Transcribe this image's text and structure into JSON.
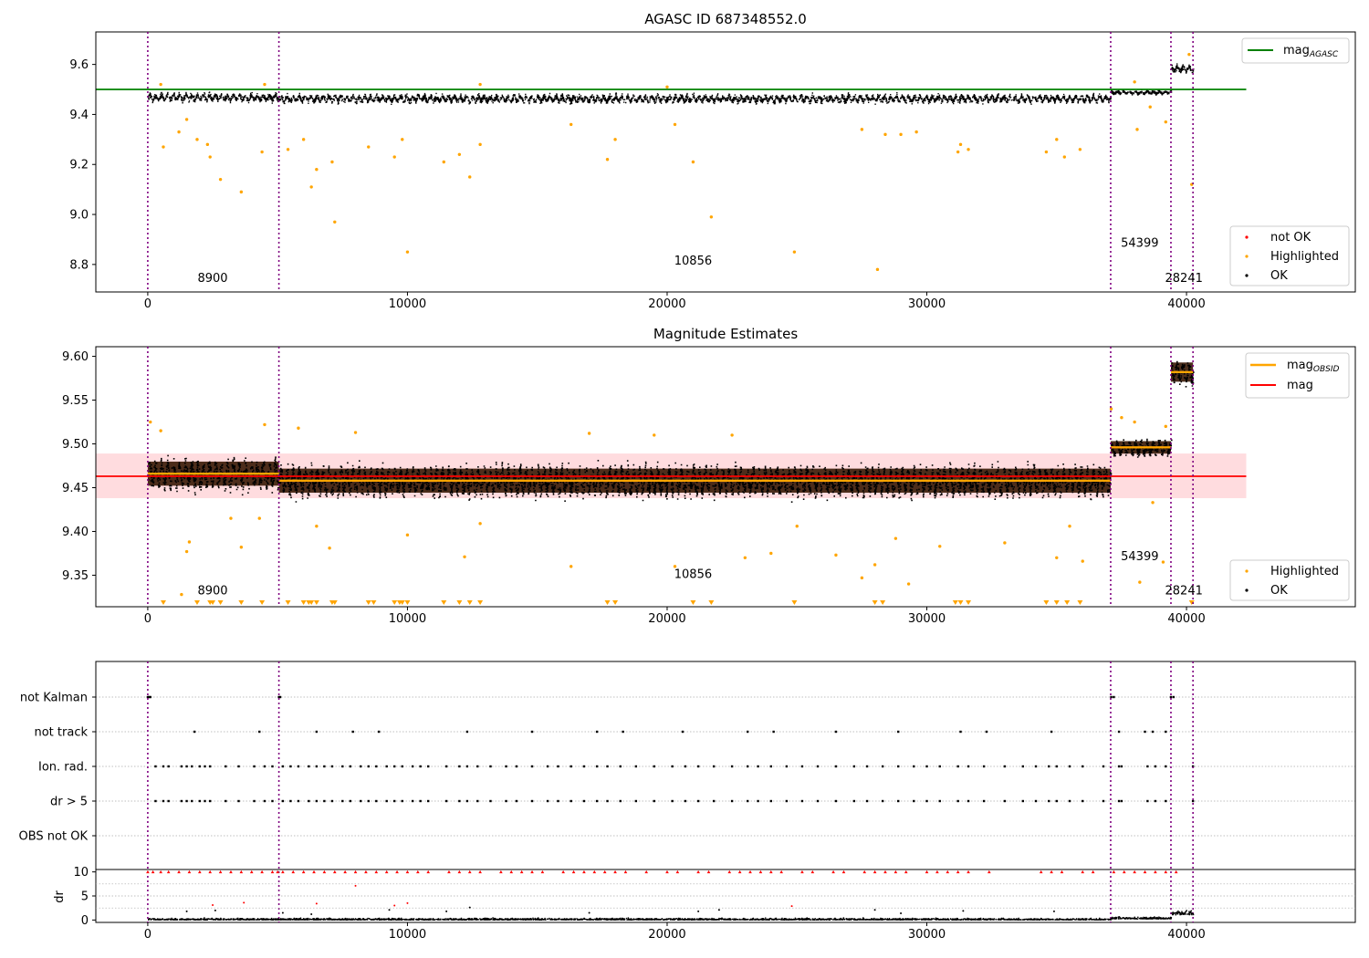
{
  "chart_data": [
    {
      "type": "scatter",
      "panel": "top",
      "title": "AGASC ID 687348552.0",
      "xlim": [
        -2000,
        46500
      ],
      "ylim": [
        8.69,
        9.73
      ],
      "xticks": [
        0,
        10000,
        20000,
        30000,
        40000
      ],
      "yticks": [
        8.8,
        9.0,
        9.2,
        9.4,
        9.6
      ],
      "ytick_labels": [
        "8.8",
        "9.0",
        "9.2",
        "9.4",
        "9.6"
      ],
      "obsid_boundaries": [
        0,
        5050,
        37080,
        39400,
        40250
      ],
      "obsid_labels": [
        {
          "text": "8900",
          "x": 2500,
          "y": 8.73
        },
        {
          "text": "10856",
          "x": 21000,
          "y": 8.8
        },
        {
          "text": "54399",
          "x": 38200,
          "y": 8.87
        },
        {
          "text": "28241",
          "x": 39900,
          "y": 8.73
        }
      ],
      "mag_agasc": 9.5,
      "mag_agasc_xrange": [
        -2000,
        42300
      ],
      "segments": [
        {
          "x0": 0,
          "x1": 5050,
          "center": 9.47,
          "spread": 0.025
        },
        {
          "x0": 5050,
          "x1": 37080,
          "center": 9.465,
          "spread": 0.025
        },
        {
          "x0": 37080,
          "x1": 39400,
          "center": 9.49,
          "spread": 0.012
        },
        {
          "x0": 39400,
          "x1": 40250,
          "center": 9.585,
          "spread": 0.025
        }
      ],
      "highlighted": [
        [
          600,
          9.27
        ],
        [
          1200,
          9.33
        ],
        [
          1500,
          9.38
        ],
        [
          1900,
          9.3
        ],
        [
          2300,
          9.28
        ],
        [
          2400,
          9.23
        ],
        [
          2800,
          9.14
        ],
        [
          3600,
          9.09
        ],
        [
          4400,
          9.25
        ],
        [
          5400,
          9.26
        ],
        [
          6000,
          9.3
        ],
        [
          6300,
          9.11
        ],
        [
          6500,
          9.18
        ],
        [
          7100,
          9.21
        ],
        [
          7200,
          8.97
        ],
        [
          8500,
          9.27
        ],
        [
          9500,
          9.23
        ],
        [
          9800,
          9.3
        ],
        [
          10000,
          8.85
        ],
        [
          11400,
          9.21
        ],
        [
          12000,
          9.24
        ],
        [
          12400,
          9.15
        ],
        [
          12800,
          9.28
        ],
        [
          16300,
          9.36
        ],
        [
          17700,
          9.22
        ],
        [
          18000,
          9.3
        ],
        [
          20300,
          9.36
        ],
        [
          21000,
          9.21
        ],
        [
          21700,
          8.99
        ],
        [
          24900,
          8.85
        ],
        [
          27500,
          9.34
        ],
        [
          28100,
          8.78
        ],
        [
          28400,
          9.32
        ],
        [
          29000,
          9.32
        ],
        [
          29600,
          9.33
        ],
        [
          31200,
          9.25
        ],
        [
          31300,
          9.28
        ],
        [
          31600,
          9.26
        ],
        [
          34600,
          9.25
        ],
        [
          35000,
          9.3
        ],
        [
          35300,
          9.23
        ],
        [
          35900,
          9.26
        ],
        [
          38100,
          9.34
        ],
        [
          38600,
          9.43
        ],
        [
          39200,
          9.37
        ],
        [
          40200,
          9.12
        ],
        [
          500,
          9.52
        ],
        [
          4500,
          9.52
        ],
        [
          12800,
          9.52
        ],
        [
          20000,
          9.51
        ],
        [
          38000,
          9.53
        ],
        [
          40100,
          9.64
        ]
      ],
      "legend_top": [
        "mag_AGASC"
      ],
      "legend_bottom": [
        "not OK",
        "Highlighted",
        "OK"
      ]
    },
    {
      "type": "scatter",
      "panel": "middle",
      "title": "Magnitude Estimates",
      "xlim": [
        -2000,
        46500
      ],
      "ylim": [
        9.314,
        9.611
      ],
      "xticks": [
        0,
        10000,
        20000,
        30000,
        40000
      ],
      "yticks": [
        9.35,
        9.4,
        9.45,
        9.5,
        9.55,
        9.6
      ],
      "ytick_labels": [
        "9.35",
        "9.40",
        "9.45",
        "9.50",
        "9.55",
        "9.60"
      ],
      "obsid_boundaries": [
        0,
        5050,
        37080,
        39400,
        40250
      ],
      "obsid_labels": [
        {
          "text": "8900",
          "x": 2500,
          "y": 9.328
        },
        {
          "text": "10856",
          "x": 21000,
          "y": 9.347
        },
        {
          "text": "54399",
          "x": 38200,
          "y": 9.367
        },
        {
          "text": "28241",
          "x": 39900,
          "y": 9.328
        }
      ],
      "mag": 9.463,
      "mag_band": [
        9.438,
        9.489
      ],
      "mag_xrange": [
        -2000,
        42300
      ],
      "mag_obsid": [
        {
          "x0": 0,
          "x1": 5050,
          "value": 9.466
        },
        {
          "x0": 5050,
          "x1": 37080,
          "value": 9.458
        },
        {
          "x0": 37080,
          "x1": 39400,
          "value": 9.496
        },
        {
          "x0": 39400,
          "x1": 40250,
          "value": 9.582
        }
      ],
      "segments": [
        {
          "x0": 0,
          "x1": 5050,
          "center": 9.466,
          "spread": 0.025
        },
        {
          "x0": 5050,
          "x1": 37080,
          "center": 9.458,
          "spread": 0.025
        },
        {
          "x0": 37080,
          "x1": 39400,
          "center": 9.496,
          "spread": 0.013
        },
        {
          "x0": 39400,
          "x1": 40250,
          "center": 9.582,
          "spread": 0.02
        }
      ],
      "highlighted": [
        [
          100,
          9.525
        ],
        [
          500,
          9.515
        ],
        [
          1500,
          9.377
        ],
        [
          1600,
          9.388
        ],
        [
          1300,
          9.328
        ],
        [
          3200,
          9.415
        ],
        [
          3600,
          9.382
        ],
        [
          4300,
          9.415
        ],
        [
          4500,
          9.522
        ],
        [
          5800,
          9.518
        ],
        [
          6500,
          9.406
        ],
        [
          7000,
          9.381
        ],
        [
          8000,
          9.513
        ],
        [
          10000,
          9.396
        ],
        [
          12200,
          9.371
        ],
        [
          12800,
          9.409
        ],
        [
          16300,
          9.36
        ],
        [
          17000,
          9.512
        ],
        [
          19500,
          9.51
        ],
        [
          20300,
          9.36
        ],
        [
          22500,
          9.51
        ],
        [
          23000,
          9.37
        ],
        [
          24000,
          9.375
        ],
        [
          25000,
          9.406
        ],
        [
          26500,
          9.373
        ],
        [
          27500,
          9.347
        ],
        [
          28000,
          9.362
        ],
        [
          28800,
          9.392
        ],
        [
          29300,
          9.34
        ],
        [
          30500,
          9.383
        ],
        [
          33000,
          9.387
        ],
        [
          35000,
          9.37
        ],
        [
          35500,
          9.406
        ],
        [
          36000,
          9.366
        ],
        [
          37100,
          9.54
        ],
        [
          37500,
          9.53
        ],
        [
          38000,
          9.525
        ],
        [
          38200,
          9.342
        ],
        [
          38700,
          9.433
        ],
        [
          39100,
          9.365
        ],
        [
          39200,
          9.52
        ]
      ],
      "clipped_markers_x": [
        600,
        1900,
        2400,
        2500,
        2800,
        3600,
        4400,
        5400,
        6000,
        6200,
        6300,
        6500,
        7100,
        7200,
        8500,
        8700,
        9500,
        9700,
        9800,
        10000,
        11400,
        12000,
        12400,
        12800,
        17700,
        18000,
        21000,
        21700,
        24900,
        28000,
        28300,
        31100,
        31300,
        31600,
        34600,
        35000,
        35400,
        35900,
        40200
      ],
      "legend_top": [
        "mag_OBSID",
        "mag"
      ],
      "legend_bottom": [
        "Highlighted",
        "OK"
      ]
    },
    {
      "type": "scatter",
      "panel": "flags",
      "xlim": [
        -2000,
        46500
      ],
      "categories": [
        "not Kalman",
        "not track",
        "Ion. rad.",
        "dr > 5",
        "OBS not OK"
      ],
      "obsid_boundaries": [
        0,
        5050,
        37080,
        39400,
        40250
      ],
      "flag_points": {
        "not Kalman": [
          0,
          50,
          100,
          5050,
          5100,
          37100,
          37200,
          39400,
          39500
        ],
        "not track": [
          1800,
          4300,
          6500,
          7900,
          8900,
          12300,
          14800,
          17300,
          18300,
          20600,
          23100,
          24100,
          26500,
          28900,
          31300,
          32300,
          34800,
          37400,
          38400,
          38700,
          39200
        ],
        "Ion. rad.": [
          300,
          600,
          800,
          1300,
          1500,
          1700,
          2000,
          2200,
          2400,
          3000,
          3500,
          4100,
          4500,
          4800,
          5200,
          5500,
          5800,
          6200,
          6500,
          6800,
          7100,
          7500,
          7800,
          8200,
          8500,
          8800,
          9200,
          9500,
          9800,
          10200,
          10500,
          10800,
          11500,
          12000,
          12300,
          12700,
          13200,
          13800,
          14200,
          14800,
          15400,
          15800,
          16300,
          16800,
          17300,
          17700,
          18200,
          18800,
          19500,
          20200,
          20700,
          21200,
          21800,
          22500,
          23100,
          23500,
          24000,
          24600,
          25200,
          25800,
          26500,
          27200,
          27700,
          28300,
          28900,
          29500,
          30000,
          30500,
          31200,
          31600,
          32200,
          33000,
          33700,
          34200,
          34700,
          35000,
          35500,
          36000,
          36800,
          37400,
          37500,
          38500,
          38800,
          39200,
          40250
        ],
        "dr > 5": [
          300,
          600,
          800,
          1300,
          1500,
          1700,
          2000,
          2200,
          2400,
          3000,
          3500,
          4100,
          4500,
          4800,
          5200,
          5500,
          5800,
          6200,
          6500,
          6800,
          7100,
          7500,
          7800,
          8200,
          8500,
          8800,
          9200,
          9500,
          9800,
          10200,
          10500,
          10800,
          11500,
          12000,
          12300,
          12700,
          13200,
          13800,
          14200,
          14800,
          15400,
          15800,
          16300,
          16800,
          17300,
          17700,
          18200,
          18800,
          19500,
          20200,
          20700,
          21200,
          21800,
          22500,
          23100,
          23500,
          24000,
          24600,
          25200,
          25800,
          26500,
          27200,
          27700,
          28300,
          28900,
          29500,
          30000,
          30500,
          31200,
          31600,
          32200,
          33000,
          33700,
          34200,
          34700,
          35000,
          35500,
          36000,
          36800,
          37400,
          37500,
          38500,
          38800,
          39200,
          40250
        ],
        "OBS not OK": []
      }
    },
    {
      "type": "scatter",
      "panel": "dr",
      "ylabel": "dr",
      "xlim": [
        -2000,
        46500
      ],
      "ylim": [
        -0.5,
        10.5
      ],
      "xticks": [
        0,
        10000,
        20000,
        30000,
        40000
      ],
      "yticks": [
        0,
        5,
        10
      ],
      "obsid_boundaries": [
        0,
        5050,
        37080,
        39400,
        40250
      ],
      "dr_scatter": [
        [
          2500,
          3.1
        ],
        [
          3700,
          3.6
        ],
        [
          6500,
          3.4
        ],
        [
          8000,
          7.1
        ],
        [
          9500,
          3
        ],
        [
          10000,
          3.5
        ],
        [
          1500,
          1.8
        ],
        [
          2600,
          2
        ],
        [
          5200,
          1.5
        ],
        [
          6300,
          1.2
        ],
        [
          9300,
          2.1
        ],
        [
          11500,
          1.8
        ],
        [
          12400,
          2.6
        ],
        [
          17000,
          1.5
        ],
        [
          21200,
          1.8
        ],
        [
          22000,
          2.1
        ],
        [
          24800,
          2.9
        ],
        [
          28000,
          2.1
        ],
        [
          29000,
          1.4
        ],
        [
          31400,
          1.9
        ],
        [
          34900,
          1.8
        ]
      ],
      "dr_clipped_x": [
        0,
        200,
        500,
        800,
        1200,
        1600,
        2000,
        2400,
        2800,
        3200,
        3600,
        4000,
        4400,
        4800,
        5000,
        5200,
        5600,
        6000,
        6400,
        6800,
        7200,
        7600,
        8000,
        8400,
        8800,
        9200,
        9600,
        10000,
        10400,
        10800,
        11600,
        12000,
        12400,
        12800,
        13600,
        14000,
        14400,
        14800,
        15200,
        16000,
        16400,
        16800,
        17200,
        17600,
        18000,
        18400,
        19200,
        20000,
        20400,
        21200,
        21600,
        22400,
        22800,
        23200,
        23600,
        24000,
        24400,
        25200,
        25600,
        26400,
        26800,
        27600,
        28000,
        28400,
        28800,
        29200,
        30000,
        30400,
        30800,
        31200,
        31600,
        32400,
        34400,
        34800,
        35200,
        36000,
        36400,
        37200,
        37600,
        38000,
        38400,
        38800,
        39200,
        39600
      ]
    }
  ]
}
